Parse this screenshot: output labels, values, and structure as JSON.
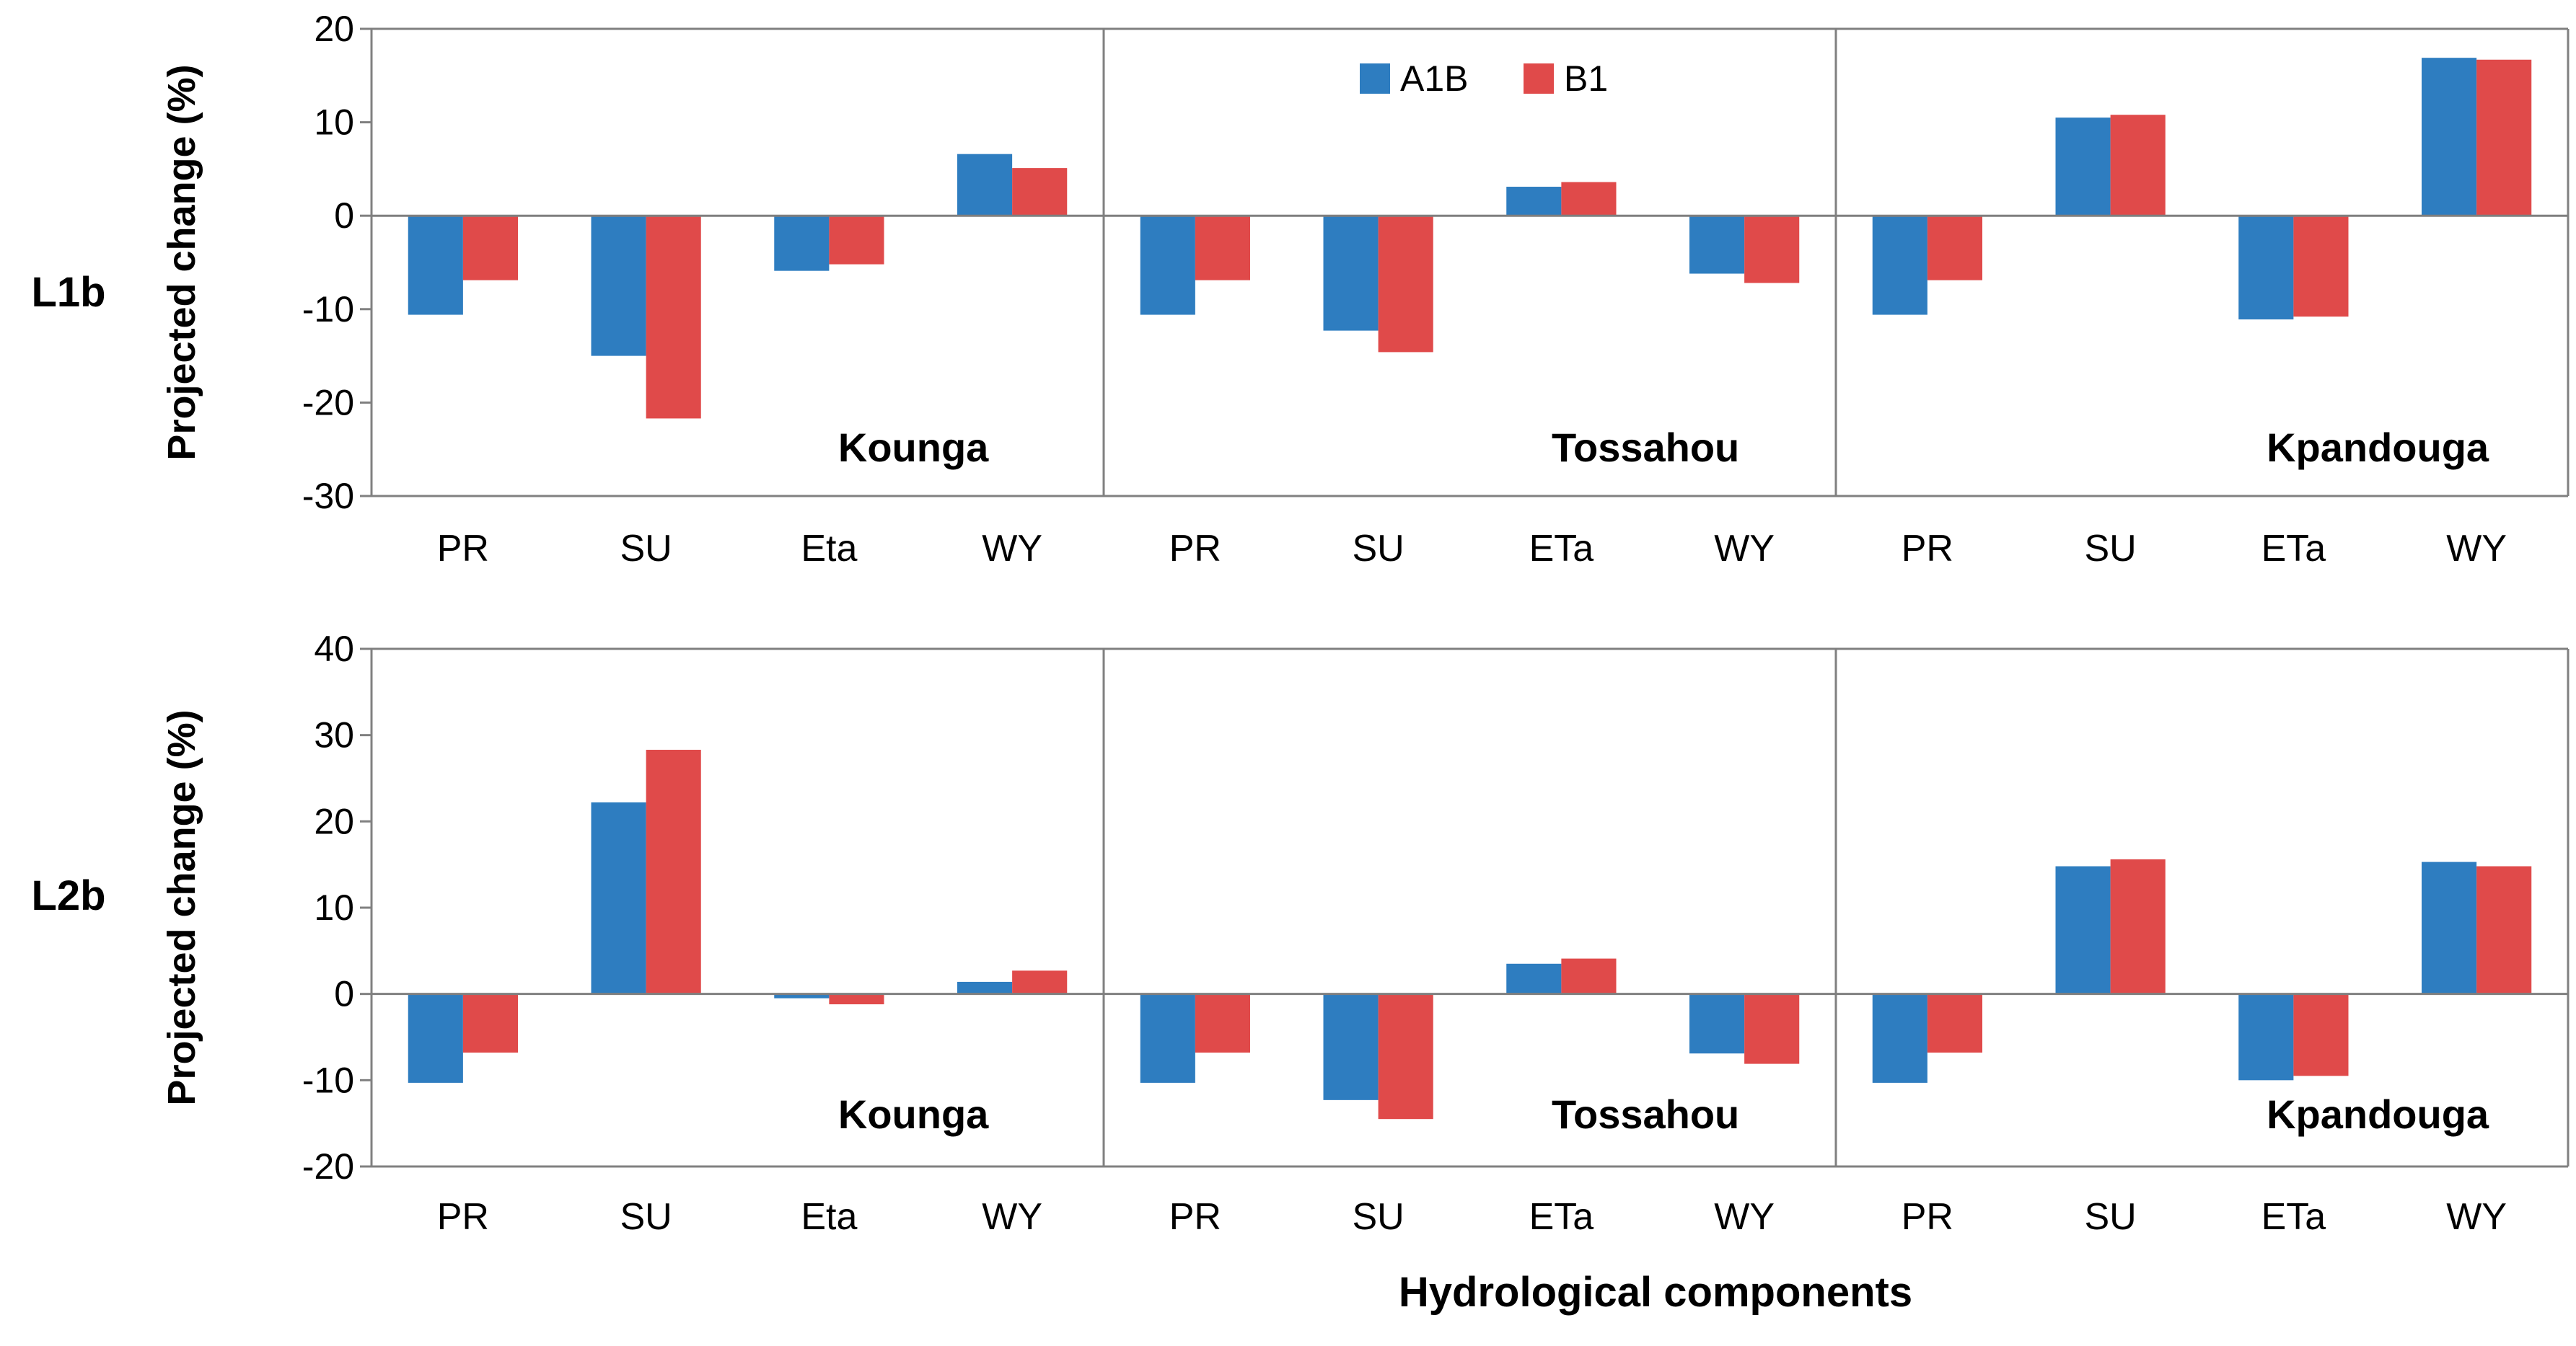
{
  "colors": {
    "A1B": "#2e7dc0",
    "B1": "#e04a4a",
    "axis": "#808080",
    "zero": "#7f7f7f"
  },
  "legend": [
    {
      "name": "A1B",
      "color": "#2e7dc0"
    },
    {
      "name": "B1",
      "color": "#e04a4a"
    }
  ],
  "xlabel": "Hydrological components",
  "chart_data": [
    {
      "type": "bar",
      "row_label": "L1b",
      "ylabel": "Projected change (%)",
      "ylim": [
        -30,
        20
      ],
      "yticks": [
        20,
        10,
        0,
        -10,
        -20,
        -30
      ],
      "ytick_labels": [
        "20",
        "10",
        "0",
        "-10",
        "-20",
        "-30"
      ],
      "groups": [
        {
          "site": "Kounga",
          "categories": [
            "PR",
            "SU",
            "Eta",
            "WY"
          ],
          "series": [
            {
              "name": "A1B",
              "values": [
                -10.6,
                -15.0,
                -5.9,
                6.6
              ]
            },
            {
              "name": "B1",
              "values": [
                -6.9,
                -21.7,
                -5.2,
                5.1
              ]
            }
          ]
        },
        {
          "site": "Tossahou",
          "categories": [
            "PR",
            "SU",
            "ETa",
            "WY"
          ],
          "series": [
            {
              "name": "A1B",
              "values": [
                -10.6,
                -12.3,
                3.1,
                -6.2
              ]
            },
            {
              "name": "B1",
              "values": [
                -6.9,
                -14.6,
                3.6,
                -7.2
              ]
            }
          ]
        },
        {
          "site": "Kpandouga",
          "categories": [
            "PR",
            "SU",
            "ETa",
            "WY"
          ],
          "series": [
            {
              "name": "A1B",
              "values": [
                -10.6,
                10.5,
                -11.1,
                16.9
              ]
            },
            {
              "name": "B1",
              "values": [
                -6.9,
                10.8,
                -10.8,
                16.7
              ]
            }
          ]
        }
      ]
    },
    {
      "type": "bar",
      "row_label": "L2b",
      "ylabel": "Projected change (%)",
      "ylim": [
        -20,
        40
      ],
      "yticks": [
        40,
        30,
        20,
        10,
        0,
        -10,
        -20
      ],
      "ytick_labels": [
        "40",
        "30",
        "20",
        "10",
        "0",
        "-10",
        "-20"
      ],
      "groups": [
        {
          "site": "Kounga",
          "categories": [
            "PR",
            "SU",
            "Eta",
            "WY"
          ],
          "series": [
            {
              "name": "A1B",
              "values": [
                -10.3,
                22.2,
                -0.5,
                1.4
              ]
            },
            {
              "name": "B1",
              "values": [
                -6.8,
                28.3,
                -1.2,
                2.7
              ]
            }
          ]
        },
        {
          "site": "Tossahou",
          "categories": [
            "PR",
            "SU",
            "ETa",
            "WY"
          ],
          "series": [
            {
              "name": "A1B",
              "values": [
                -10.3,
                -12.3,
                3.5,
                -6.9
              ]
            },
            {
              "name": "B1",
              "values": [
                -6.8,
                -14.5,
                4.1,
                -8.1
              ]
            }
          ]
        },
        {
          "site": "Kpandouga",
          "categories": [
            "PR",
            "SU",
            "ETa",
            "WY"
          ],
          "series": [
            {
              "name": "A1B",
              "values": [
                -10.3,
                14.8,
                -10.0,
                15.3
              ]
            },
            {
              "name": "B1",
              "values": [
                -6.8,
                15.6,
                -9.5,
                14.8
              ]
            }
          ]
        }
      ]
    }
  ]
}
